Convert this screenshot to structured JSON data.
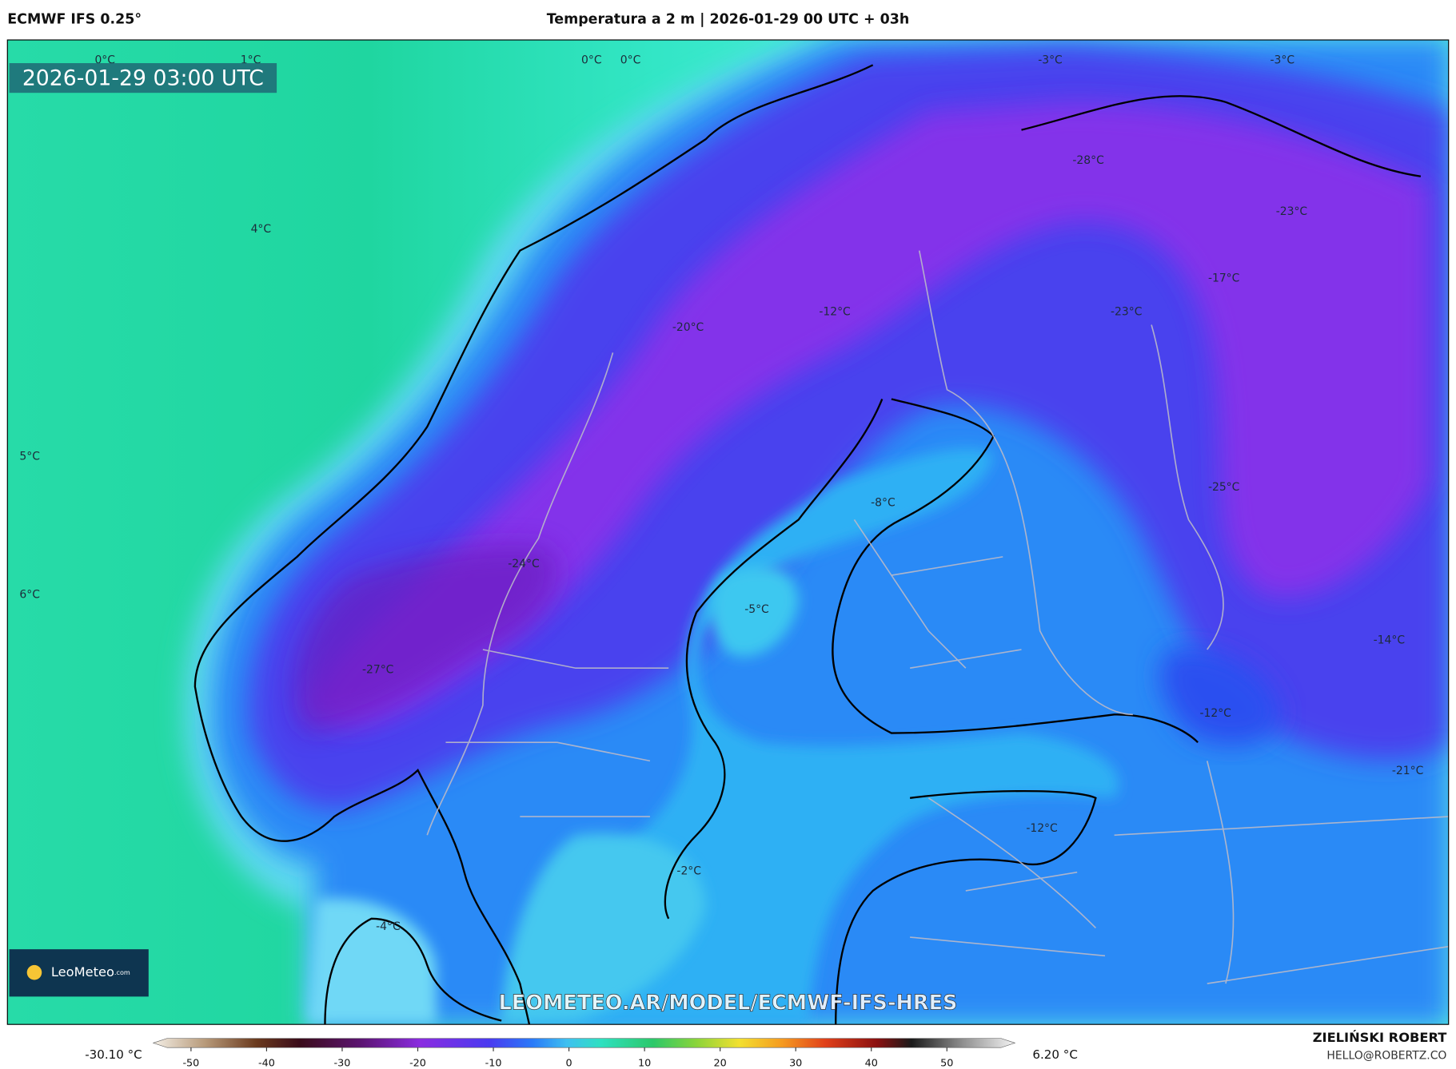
{
  "header": {
    "model": "ECMWF IFS 0.25°",
    "title": "Temperatura a 2 m | 2026-01-29 00 UTC + 03h"
  },
  "map": {
    "valid_time": "2026-01-29 03:00 UTC",
    "isotherm_labels": [
      "0°C",
      "1°C",
      "0°C",
      "0°C",
      "4°C",
      "5°C",
      "6°C",
      "-20°C",
      "-12°C",
      "-28°C",
      "-23°C",
      "-17°C",
      "-23°C",
      "-3°C",
      "-3°C",
      "-25°C",
      "-8°C",
      "-24°C",
      "-5°C",
      "-27°C",
      "-14°C",
      "-12°C",
      "-21°C",
      "-12°C",
      "-2°C",
      "-4°C"
    ],
    "watermark": "LEOMETEO.AR/MODEL/ECMWF-IFS-HRES",
    "logo_name": "LeoMeteo",
    "logo_suffix": ".com"
  },
  "colorbar": {
    "min_label": "-30.10 °C",
    "max_label": "6.20 °C",
    "range": [
      -55,
      59
    ],
    "ticks": [
      -50,
      -40,
      -30,
      -20,
      -10,
      0,
      10,
      20,
      30,
      40,
      50
    ]
  },
  "footer": {
    "author": "ZIELIŃSKI ROBERT",
    "contact": "HELLO@ROBERTZ.CO"
  }
}
